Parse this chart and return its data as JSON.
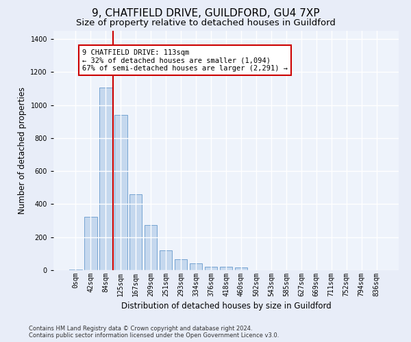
{
  "title_line1": "9, CHATFIELD DRIVE, GUILDFORD, GU4 7XP",
  "title_line2": "Size of property relative to detached houses in Guildford",
  "xlabel": "Distribution of detached houses by size in Guildford",
  "ylabel": "Number of detached properties",
  "bar_heights": [
    5,
    325,
    1105,
    940,
    460,
    275,
    120,
    65,
    40,
    20,
    20,
    15,
    0,
    0,
    0,
    0,
    0,
    0,
    0,
    0,
    0
  ],
  "bar_labels": [
    "0sqm",
    "42sqm",
    "84sqm",
    "125sqm",
    "167sqm",
    "209sqm",
    "251sqm",
    "293sqm",
    "334sqm",
    "376sqm",
    "418sqm",
    "460sqm",
    "502sqm",
    "543sqm",
    "585sqm",
    "627sqm",
    "669sqm",
    "711sqm",
    "752sqm",
    "794sqm",
    "836sqm"
  ],
  "bar_color": "#c5d8ee",
  "bar_edge_color": "#6699cc",
  "vline_color": "#cc0000",
  "vline_x": 2.5,
  "annotation_text": "9 CHATFIELD DRIVE: 113sqm\n← 32% of detached houses are smaller (1,094)\n67% of semi-detached houses are larger (2,291) →",
  "annotation_box_facecolor": "#ffffff",
  "annotation_box_edgecolor": "#cc0000",
  "ylim": [
    0,
    1450
  ],
  "yticks": [
    0,
    200,
    400,
    600,
    800,
    1000,
    1200,
    1400
  ],
  "bg_color": "#e8edf8",
  "plot_bg_color": "#eef3fb",
  "footer_text": "Contains HM Land Registry data © Crown copyright and database right 2024.\nContains public sector information licensed under the Open Government Licence v3.0.",
  "title_fontsize": 11,
  "subtitle_fontsize": 9.5,
  "axis_label_fontsize": 8.5,
  "tick_fontsize": 7,
  "annotation_fontsize": 7.5,
  "footer_fontsize": 6
}
